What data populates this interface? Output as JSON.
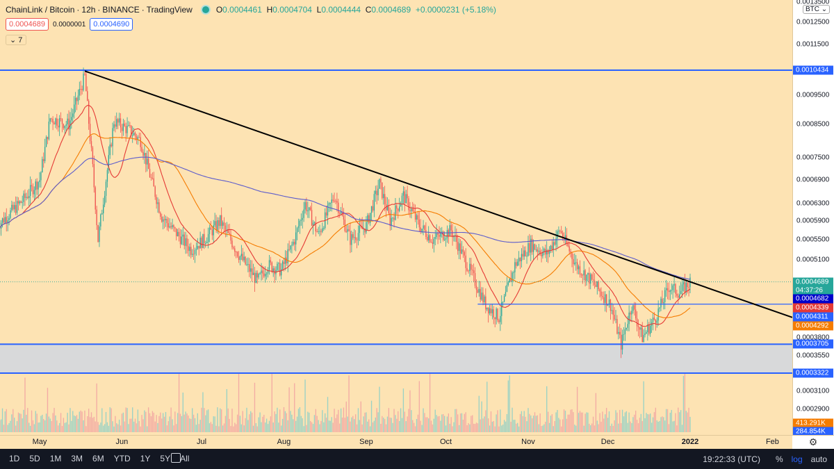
{
  "legend": {
    "symbol": "ChainLink / Bitcoin",
    "interval": "12h",
    "exchange": "BINANCE",
    "source": "TradingView",
    "open_label": "O",
    "open": "0.0004461",
    "high_label": "H",
    "high": "0.0004704",
    "low_label": "L",
    "low": "0.0004444",
    "close_label": "C",
    "close": "0.0004689",
    "change": "+0.0000231 (+5.18%)"
  },
  "order": {
    "sell": "0.0004689",
    "spread": "0.0000001",
    "buy": "0.0004690"
  },
  "indicators_collapse": {
    "arrow": "⌄",
    "count": "7"
  },
  "price_axis": {
    "currency": "BTC",
    "ticks": [
      "0.0013500",
      "0.0012500",
      "0.0011500",
      "0.0009500",
      "0.0008500",
      "0.0007500",
      "0.0006900",
      "0.0006300",
      "0.0005900",
      "0.0005500",
      "0.0005100",
      "0.0003800",
      "0.0003550",
      "0.0003100",
      "0.0002900"
    ],
    "boxes": [
      {
        "label": "0.0010434",
        "color": "#2962ff"
      },
      {
        "label": "0.0004689",
        "color": "#26a69a"
      },
      {
        "label": "04:37:26",
        "color": "#26a69a"
      },
      {
        "label": "0.0004682",
        "color": "#0000cc"
      },
      {
        "label": "0.0004339",
        "color": "#e53935"
      },
      {
        "label": "0.0004311",
        "color": "#2962ff"
      },
      {
        "label": "0.0004292",
        "color": "#f57c00"
      },
      {
        "label": "0.0003705",
        "color": "#2962ff"
      },
      {
        "label": "0.0003322",
        "color": "#2962ff"
      },
      {
        "label": "413.291K",
        "color": "#f57c00"
      },
      {
        "label": "284.854K",
        "color": "#2962ff"
      }
    ]
  },
  "time_axis": [
    "May",
    "Jun",
    "Jul",
    "Aug",
    "Sep",
    "Oct",
    "Nov",
    "Dec",
    "2022",
    "Feb"
  ],
  "bottom_bar": {
    "ranges": [
      "1D",
      "5D",
      "1M",
      "3M",
      "6M",
      "YTD",
      "1Y",
      "5Y",
      "All"
    ],
    "clock": "19:22:33 (UTC)",
    "percent": "%",
    "log": "log",
    "auto": "auto"
  },
  "colors": {
    "background": "#fde3b3",
    "up": "#26a69a",
    "down": "#ef5350",
    "ma_fast": "#e53935",
    "ma_mid": "#f57c00",
    "ma_slow": "#5c5ccc",
    "levels": "#2962ff"
  },
  "chart_data": {
    "type": "candlestick",
    "symbol": "LINK/BTC",
    "interval": "12h",
    "y_scale": "log",
    "x_range": [
      "2021-04-15",
      "2022-02-25"
    ],
    "horizontal_levels": [
      0.0010434,
      0.0004311,
      0.0003705,
      0.0003322
    ],
    "support_zone": [
      0.0003322,
      0.0003705
    ],
    "trendline": {
      "from": {
        "date": "2021-05-18",
        "price": 0.00104
      },
      "to": {
        "date": "2022-01-01",
        "price": 0.000469
      }
    },
    "close_path": [
      {
        "date": "2021-04-15",
        "price": 0.00058
      },
      {
        "date": "2021-04-25",
        "price": 0.00064
      },
      {
        "date": "2021-05-01",
        "price": 0.00069
      },
      {
        "date": "2021-05-05",
        "price": 0.00087
      },
      {
        "date": "2021-05-12",
        "price": 0.00085
      },
      {
        "date": "2021-05-18",
        "price": 0.00102
      },
      {
        "date": "2021-05-21",
        "price": 0.00072
      },
      {
        "date": "2021-05-23",
        "price": 0.00055
      },
      {
        "date": "2021-05-26",
        "price": 0.00069
      },
      {
        "date": "2021-05-29",
        "price": 0.00086
      },
      {
        "date": "2021-06-04",
        "price": 0.00083
      },
      {
        "date": "2021-06-08",
        "price": 0.0008
      },
      {
        "date": "2021-06-12",
        "price": 0.00069
      },
      {
        "date": "2021-06-16",
        "price": 0.0006
      },
      {
        "date": "2021-06-22",
        "price": 0.00056
      },
      {
        "date": "2021-06-27",
        "price": 0.00053
      },
      {
        "date": "2021-07-02",
        "price": 0.00055
      },
      {
        "date": "2021-07-08",
        "price": 0.00059
      },
      {
        "date": "2021-07-15",
        "price": 0.00052
      },
      {
        "date": "2021-07-22",
        "price": 0.00047
      },
      {
        "date": "2021-07-26",
        "price": 0.0005
      },
      {
        "date": "2021-07-31",
        "price": 0.00049
      },
      {
        "date": "2021-08-05",
        "price": 0.00055
      },
      {
        "date": "2021-08-09",
        "price": 0.00063
      },
      {
        "date": "2021-08-14",
        "price": 0.00056
      },
      {
        "date": "2021-08-20",
        "price": 0.00065
      },
      {
        "date": "2021-08-26",
        "price": 0.00055
      },
      {
        "date": "2021-09-01",
        "price": 0.00058
      },
      {
        "date": "2021-09-06",
        "price": 0.00068
      },
      {
        "date": "2021-09-10",
        "price": 0.00059
      },
      {
        "date": "2021-09-15",
        "price": 0.00065
      },
      {
        "date": "2021-09-21",
        "price": 0.00058
      },
      {
        "date": "2021-09-26",
        "price": 0.00055
      },
      {
        "date": "2021-10-03",
        "price": 0.00057
      },
      {
        "date": "2021-10-10",
        "price": 0.00049
      },
      {
        "date": "2021-10-16",
        "price": 0.00043
      },
      {
        "date": "2021-10-21",
        "price": 0.00041
      },
      {
        "date": "2021-10-27",
        "price": 0.0005
      },
      {
        "date": "2021-11-02",
        "price": 0.00054
      },
      {
        "date": "2021-11-08",
        "price": 0.00052
      },
      {
        "date": "2021-11-13",
        "price": 0.00057
      },
      {
        "date": "2021-11-19",
        "price": 0.0005
      },
      {
        "date": "2021-11-25",
        "price": 0.00047
      },
      {
        "date": "2021-12-02",
        "price": 0.00043
      },
      {
        "date": "2021-12-06",
        "price": 0.00037
      },
      {
        "date": "2021-12-10",
        "price": 0.00043
      },
      {
        "date": "2021-12-14",
        "price": 0.00038
      },
      {
        "date": "2021-12-19",
        "price": 0.00041
      },
      {
        "date": "2021-12-24",
        "price": 0.00046
      },
      {
        "date": "2021-12-28",
        "price": 0.00045
      },
      {
        "date": "2022-01-01",
        "price": 0.0004689
      }
    ]
  }
}
